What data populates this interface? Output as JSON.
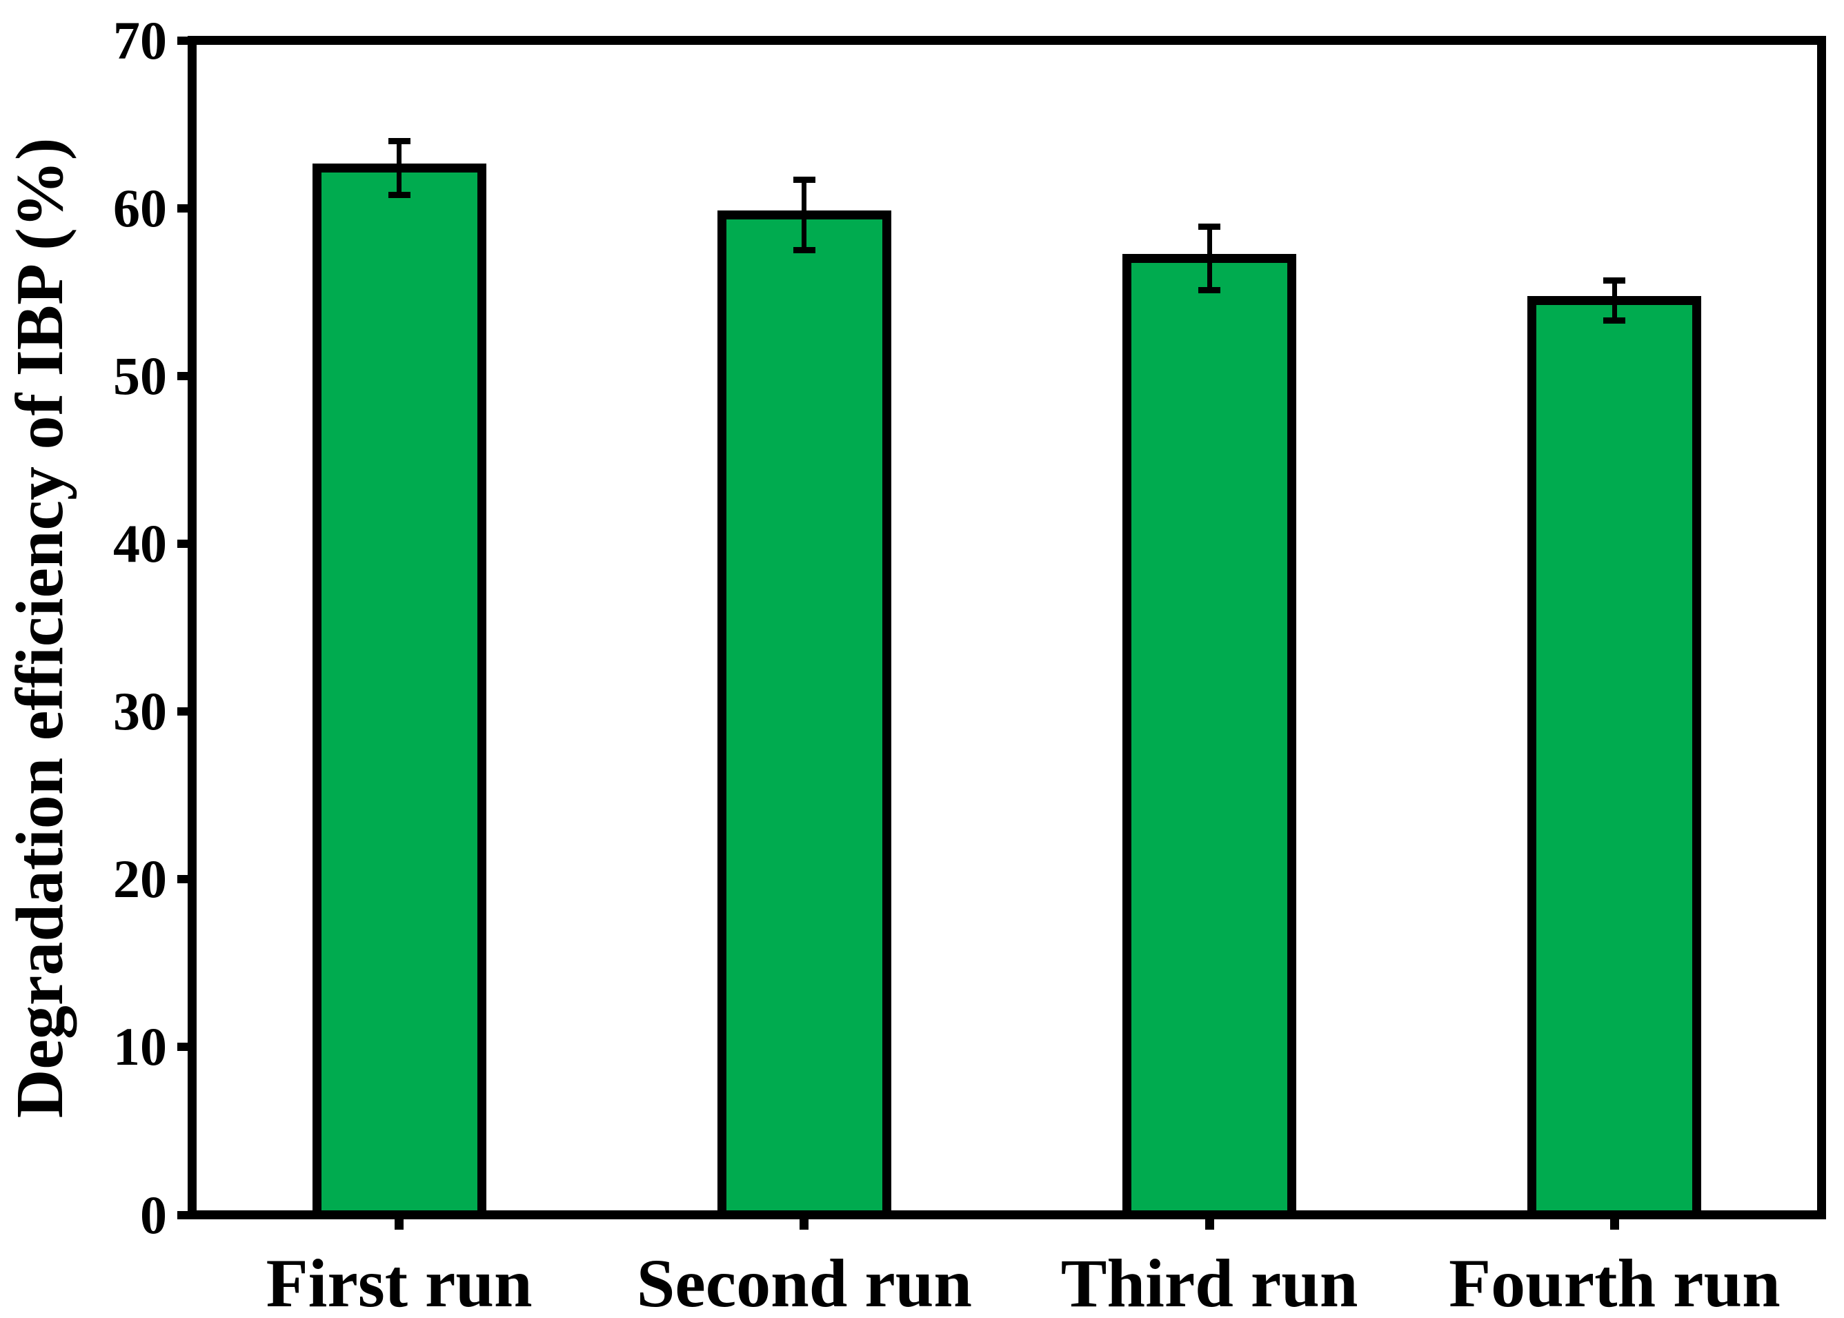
{
  "figure": {
    "background": "#ffffff"
  },
  "chart_data": {
    "type": "bar",
    "title": "",
    "categories": [
      "First run",
      "Second run",
      "Third run",
      "Fourth run"
    ],
    "values": [
      62.4,
      59.6,
      57.0,
      54.5
    ],
    "error_bars": [
      1.6,
      2.1,
      1.9,
      1.2
    ],
    "xlabel": "",
    "ylabel": "Degradation efficiency of IBP (%)",
    "ylim": [
      0,
      70
    ],
    "yticks": [
      0,
      10,
      20,
      30,
      40,
      50,
      60,
      70
    ],
    "grid": false,
    "legend_position": "none",
    "bar_color": "#00AB4F",
    "bar_border_color": "#000000",
    "axis_color": "#000000",
    "error_bar_color": "#000000"
  }
}
